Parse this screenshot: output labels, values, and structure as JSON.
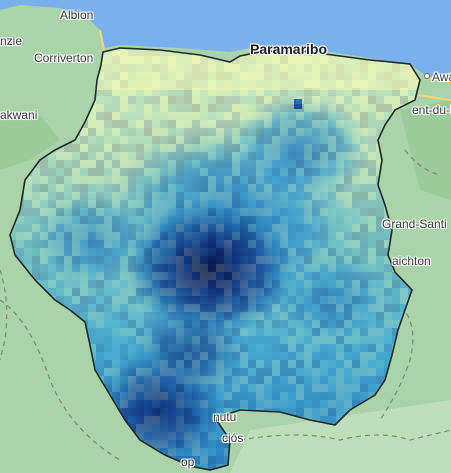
{
  "map": {
    "colors": {
      "ocean": "#7ab0ee",
      "land": "#a9d3a8",
      "land_dark": "#8fc38e",
      "border_line": "#1f2a2a",
      "ramp": [
        "#eef6b8",
        "#cfeab7",
        "#8ccdbf",
        "#4fb3d2",
        "#2a8cc4",
        "#1d63aa",
        "#1a3f8e",
        "#0b1f5e"
      ]
    },
    "places": {
      "albion": "Albion",
      "nzie": "nzie",
      "corriverton": "Corriverton",
      "akwani": "akwani",
      "paramaribo": "Paramaribo",
      "awala": "Awa",
      "saint_laurent": "ent-du-M",
      "grand_santi": "Grand-Santi",
      "maripasoula": "aichton",
      "nutu": "nutu",
      "cios": "ciós",
      "opi": "op"
    },
    "icons": {
      "road": "highway-line",
      "border": "dashed-border-line"
    }
  }
}
